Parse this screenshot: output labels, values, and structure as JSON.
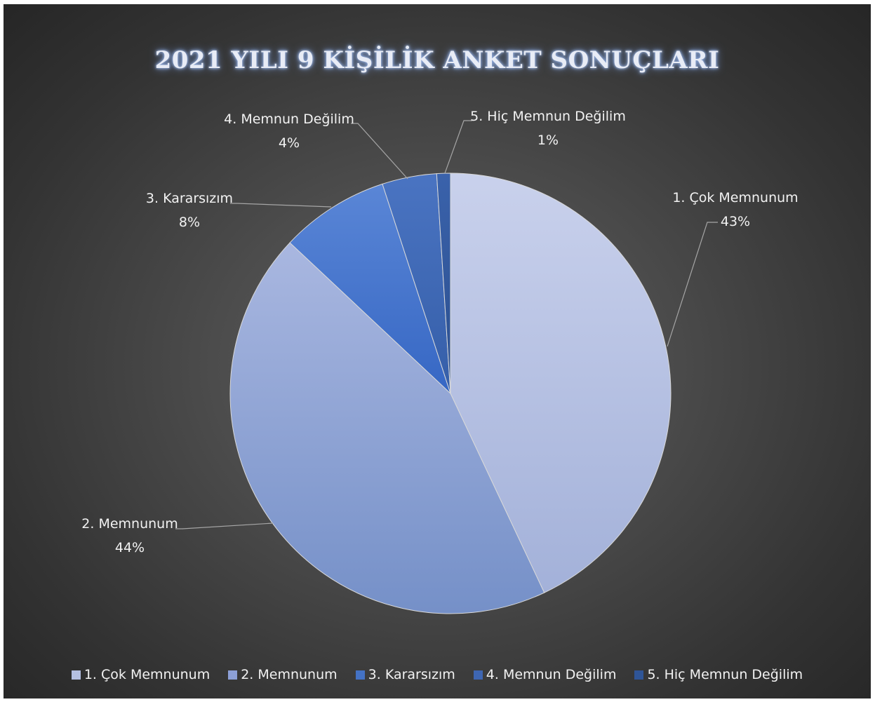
{
  "chart_data": {
    "type": "pie",
    "title": "2021 YILI 9 KİŞİLİK ANKET SONUÇLARI",
    "categories": [
      "1. Çok Memnunum",
      "2. Memnunum",
      "3. Kararsızım",
      "4. Memnun Değilim",
      "5. Hiç Memnun Değilim"
    ],
    "values": [
      43,
      44,
      8,
      4,
      1
    ],
    "value_labels": [
      "43%",
      "44%",
      "8%",
      "4%",
      "1%"
    ],
    "colors": [
      "#b4c0e2",
      "#8c9fd6",
      "#4472c4",
      "#3e66b2",
      "#2f5597"
    ],
    "legend_position": "bottom"
  }
}
